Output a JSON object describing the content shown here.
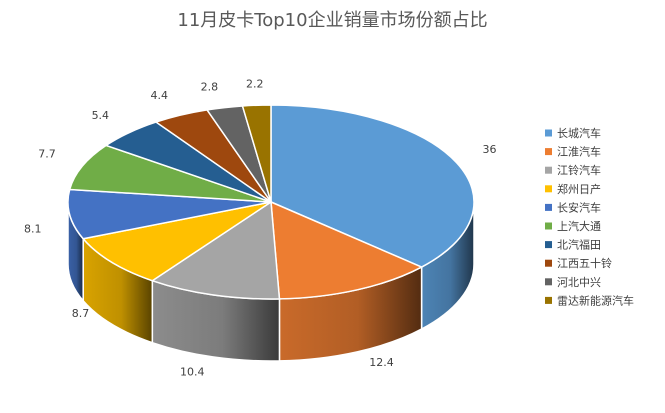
{
  "chart_data": {
    "type": "pie",
    "title": "11月皮卡Top10企业销量市场份额占比",
    "categories": [
      "长城汽车",
      "江淮汽车",
      "江铃汽车",
      "郑州日产",
      "长安汽车",
      "上汽大通",
      "北汽福田",
      "江西五十铃",
      "河北中兴",
      "雷达新能源汽车"
    ],
    "values": [
      36,
      12.4,
      10.4,
      8.7,
      8.1,
      7.7,
      5.4,
      4.4,
      2.8,
      2.2
    ],
    "value_labels": [
      "36",
      "12.4",
      "10.4",
      "8.7",
      "8.1",
      "7.7",
      "5.4",
      "4.4",
      "2.8",
      "2.2"
    ],
    "colors": [
      "#5B9BD5",
      "#ED7D31",
      "#A5A5A5",
      "#FFC000",
      "#4472C4",
      "#70AD47",
      "#255E91",
      "#9E480E",
      "#636363",
      "#997300"
    ],
    "style": "3d",
    "legend_position": "right"
  }
}
